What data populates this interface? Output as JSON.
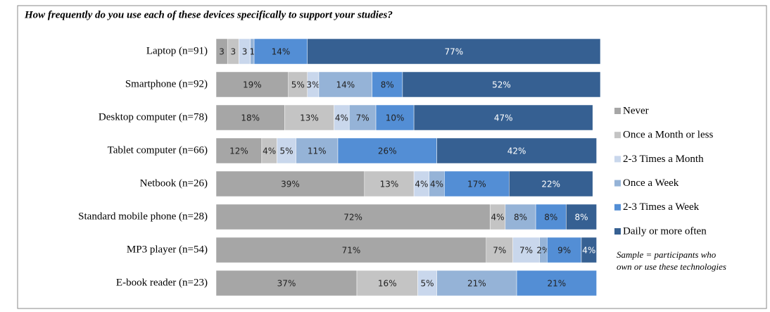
{
  "chart_data": {
    "type": "stacked-barh",
    "title": "How frequently do you use each of these devices specifically to support your studies?",
    "categories": [
      "Laptop (n=91)",
      "Smartphone (n=92)",
      "Desktop computer (n=78)",
      "Tablet computer (n=66)",
      "Netbook (n=26)",
      "Standard mobile phone  (n=28)",
      "MP3 player (n=54)",
      "E-book reader (n=23)"
    ],
    "xlim": [
      0,
      101
    ],
    "series": [
      {
        "name": "Never",
        "color": "#a6a6a6",
        "values": [
          3,
          19,
          18,
          12,
          39,
          72,
          71,
          37
        ],
        "value_labels": [
          "3",
          "19%",
          "18%",
          "12%",
          "39%",
          "72%",
          "71%",
          "37%"
        ]
      },
      {
        "name": "Once a Month or less",
        "color": "#c4c4c4",
        "values": [
          3,
          5,
          13,
          4,
          13,
          4,
          7,
          16
        ],
        "value_labels": [
          "3",
          "5%",
          "13%",
          "4%",
          "13%",
          "4%",
          "7%",
          "16%"
        ]
      },
      {
        "name": "2-3 Times a Month",
        "color": "#c9d7ec",
        "values": [
          3,
          3,
          4,
          5,
          4,
          0,
          7,
          5
        ],
        "value_labels": [
          "3",
          "3%",
          "4%",
          "5%",
          "4%",
          null,
          "7%",
          "5%"
        ]
      },
      {
        "name": "Once a Week",
        "color": "#95b3d7",
        "values": [
          1,
          14,
          7,
          11,
          4,
          8,
          2,
          21
        ],
        "value_labels": [
          "1",
          "14%",
          "7%",
          "11%",
          "4%",
          "8%",
          "2%",
          "21%"
        ]
      },
      {
        "name": "2-3 Times a Week",
        "color": "#538ed5",
        "values": [
          14,
          8,
          10,
          26,
          17,
          8,
          9,
          21
        ],
        "value_labels": [
          "14%",
          "8%",
          "10%",
          "26%",
          "17%",
          "8%",
          "9%",
          "21%"
        ]
      },
      {
        "name": "Daily or more often",
        "color": "#366092",
        "values": [
          77,
          52,
          47,
          42,
          22,
          8,
          4,
          0
        ],
        "value_labels": [
          "77%",
          "52%",
          "47%",
          "42%",
          "22%",
          "8%",
          "4%",
          null
        ]
      }
    ],
    "note": [
      "Sample = participants who",
      "own or use these technologies"
    ]
  }
}
